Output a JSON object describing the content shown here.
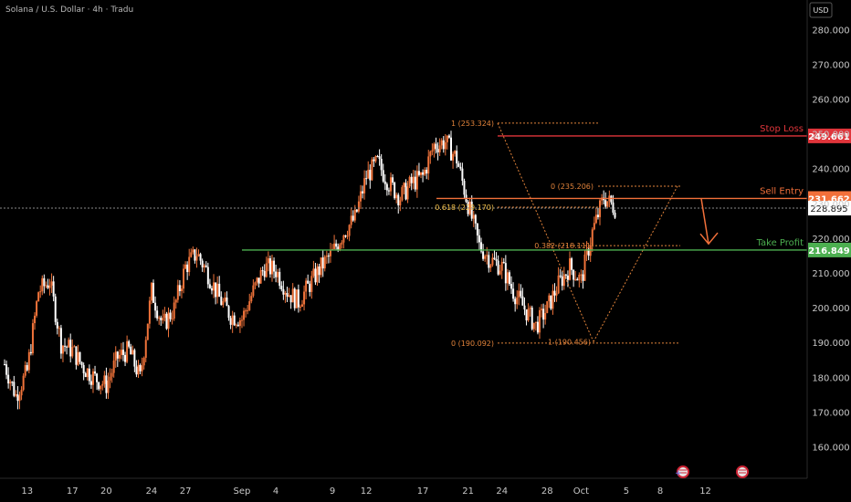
{
  "symbol": "Solana / U.S. Dollar · 4h · Tradu",
  "currency": "USD",
  "colors": {
    "up": "#f0733a",
    "down": "#ffffff",
    "stop": "#e0353b",
    "entry": "#f2703a",
    "profit": "#4caf50",
    "fib": "#e0823a",
    "fib_key": "#f3c04b",
    "background": "#000000"
  },
  "chart_data": {
    "type": "candlestick",
    "title": "Solana / U.S. Dollar · 4h · Tradu",
    "ylabel": "USD",
    "ylim": [
      150,
      285
    ],
    "y_ticks": [
      160,
      170,
      180,
      190,
      200,
      210,
      220,
      230,
      240,
      250,
      260,
      270,
      280
    ],
    "x_ticks": [
      "13",
      "17",
      "20",
      "24",
      "27",
      "Sep",
      "4",
      "9",
      "12",
      "17",
      "21",
      "24",
      "28",
      "Oct",
      "5",
      "8",
      "12"
    ],
    "current_price": 228.895,
    "levels": [
      {
        "name": "Stop Loss",
        "value": 249.661
      },
      {
        "name": "Sell Entry",
        "value": 231.662
      },
      {
        "name": "Take Profit",
        "value": 216.849
      }
    ],
    "fib_labels": [
      {
        "text": "1 (253.324)",
        "value": 253.324
      },
      {
        "text": "0 (235.206)",
        "value": 235.206
      },
      {
        "text": "0.618 (229.170)",
        "value": 229.17
      },
      {
        "text": "0.382 (218.111)",
        "value": 218.111
      },
      {
        "text": "0 (190.092)",
        "value": 190.092
      },
      {
        "text": "1 (190.456)",
        "value": 190.456
      }
    ],
    "price_path": [
      {
        "x": "Aug 11",
        "y": 184
      },
      {
        "x": "Aug 12",
        "y": 175
      },
      {
        "x": "Aug 13",
        "y": 182
      },
      {
        "x": "Aug 14",
        "y": 205
      },
      {
        "x": "Aug 15",
        "y": 208
      },
      {
        "x": "Aug 16",
        "y": 190
      },
      {
        "x": "Aug 17",
        "y": 188
      },
      {
        "x": "Aug 18",
        "y": 183
      },
      {
        "x": "Aug 19",
        "y": 180
      },
      {
        "x": "Aug 20",
        "y": 178
      },
      {
        "x": "Aug 21",
        "y": 186
      },
      {
        "x": "Aug 22",
        "y": 188
      },
      {
        "x": "Aug 23",
        "y": 180
      },
      {
        "x": "Aug 24",
        "y": 205
      },
      {
        "x": "Aug 25",
        "y": 195
      },
      {
        "x": "Aug 26",
        "y": 200
      },
      {
        "x": "Aug 27",
        "y": 212
      },
      {
        "x": "Aug 28",
        "y": 216
      },
      {
        "x": "Aug 29",
        "y": 210
      },
      {
        "x": "Aug 30",
        "y": 203
      },
      {
        "x": "Aug 31",
        "y": 198
      },
      {
        "x": "Sep 1",
        "y": 197
      },
      {
        "x": "Sep 2",
        "y": 205
      },
      {
        "x": "Sep 3",
        "y": 212
      },
      {
        "x": "Sep 4",
        "y": 211
      },
      {
        "x": "Sep 5",
        "y": 205
      },
      {
        "x": "Sep 6",
        "y": 202
      },
      {
        "x": "Sep 7",
        "y": 207
      },
      {
        "x": "Sep 8",
        "y": 212
      },
      {
        "x": "Sep 9",
        "y": 216
      },
      {
        "x": "Sep 10",
        "y": 222
      },
      {
        "x": "Sep 11",
        "y": 226
      },
      {
        "x": "Sep 12",
        "y": 238
      },
      {
        "x": "Sep 13",
        "y": 242
      },
      {
        "x": "Sep 14",
        "y": 236
      },
      {
        "x": "Sep 15",
        "y": 232
      },
      {
        "x": "Sep 16",
        "y": 236
      },
      {
        "x": "Sep 17",
        "y": 238
      },
      {
        "x": "Sep 18",
        "y": 247
      },
      {
        "x": "Sep 19",
        "y": 248
      },
      {
        "x": "Sep 20",
        "y": 243
      },
      {
        "x": "Sep 21",
        "y": 230
      },
      {
        "x": "Sep 22",
        "y": 218
      },
      {
        "x": "Sep 23",
        "y": 214
      },
      {
        "x": "Sep 24",
        "y": 212
      },
      {
        "x": "Sep 25",
        "y": 205
      },
      {
        "x": "Sep 26",
        "y": 200
      },
      {
        "x": "Sep 27",
        "y": 195
      },
      {
        "x": "Sep 28",
        "y": 200
      },
      {
        "x": "Sep 29",
        "y": 207
      },
      {
        "x": "Sep 30",
        "y": 212
      },
      {
        "x": "Oct 1",
        "y": 208
      },
      {
        "x": "Oct 2",
        "y": 222
      },
      {
        "x": "Oct 3",
        "y": 232
      },
      {
        "x": "Oct 4",
        "y": 229
      }
    ]
  }
}
